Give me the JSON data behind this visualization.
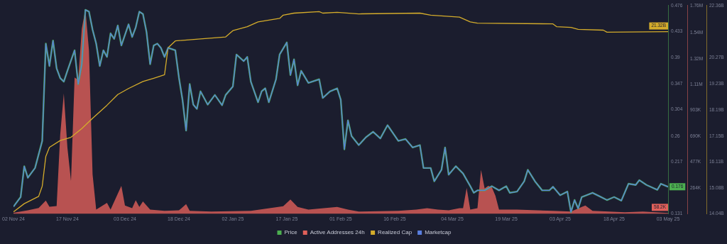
{
  "chart_data": {
    "type": "line",
    "xlim": [
      "2024-11-02",
      "2025-05-03"
    ],
    "xticks": [
      {
        "value": "2024-11-02",
        "label": "02 Nov 24"
      },
      {
        "value": "2024-11-17",
        "label": "17 Nov 24"
      },
      {
        "value": "2024-12-03",
        "label": "03 Dec 24"
      },
      {
        "value": "2024-12-18",
        "label": "18 Dec 24"
      },
      {
        "value": "2025-01-02",
        "label": "02 Jan 25"
      },
      {
        "value": "2025-01-17",
        "label": "17 Jan 25"
      },
      {
        "value": "2025-02-01",
        "label": "01 Feb 25"
      },
      {
        "value": "2025-02-16",
        "label": "16 Feb 25"
      },
      {
        "value": "2025-03-04",
        "label": "04 Mar 25"
      },
      {
        "value": "2025-03-19",
        "label": "19 Mar 25"
      },
      {
        "value": "2025-04-03",
        "label": "03 Apr 25"
      },
      {
        "value": "2025-04-18",
        "label": "18 Apr 25"
      },
      {
        "value": "2025-05-03",
        "label": "03 May 25"
      }
    ],
    "ylim": [
      0.131,
      0.476
    ],
    "yticks": [
      0.131,
      0.217,
      0.26,
      0.304,
      0.347,
      0.39,
      0.433,
      0.476
    ],
    "y2lim": [
      51000,
      1760000
    ],
    "y2ticks": [
      {
        "value": 264000,
        "label": "264K"
      },
      {
        "value": 477000,
        "label": "477K"
      },
      {
        "value": 690000,
        "label": "690K"
      },
      {
        "value": 903000,
        "label": "903K"
      },
      {
        "value": 1110000,
        "label": "1.11M"
      },
      {
        "value": 1320000,
        "label": "1.32M"
      },
      {
        "value": 1540000,
        "label": "1.54M"
      },
      {
        "value": 1760000,
        "label": "1.76M"
      }
    ],
    "y3lim": [
      14.04,
      22.36
    ],
    "y3ticks": [
      {
        "value": 14.04,
        "label": "14.04B"
      },
      {
        "value": 15.08,
        "label": "15.08B"
      },
      {
        "value": 16.11,
        "label": "16.11B"
      },
      {
        "value": 17.15,
        "label": "17.15B"
      },
      {
        "value": 18.19,
        "label": "18.19B"
      },
      {
        "value": 19.23,
        "label": "19.23B"
      },
      {
        "value": 20.27,
        "label": "20.27B"
      },
      {
        "value": 22.36,
        "label": "22.36B"
      }
    ],
    "legend": "bottom",
    "grid": false,
    "marker": "none",
    "series": [
      {
        "name": "Price",
        "color": "#4caf50",
        "x": [
          "2024-11-02",
          "2024-11-04",
          "2024-11-05",
          "2024-11-06",
          "2024-11-08",
          "2024-11-10",
          "2024-11-11",
          "2024-11-12",
          "2024-11-13",
          "2024-11-14",
          "2024-11-15",
          "2024-11-16",
          "2024-11-17",
          "2024-11-19",
          "2024-11-20",
          "2024-11-21",
          "2024-11-22",
          "2024-11-23",
          "2024-11-24",
          "2024-11-25",
          "2024-11-26",
          "2024-11-27",
          "2024-11-28",
          "2024-11-29",
          "2024-11-30",
          "2024-12-01",
          "2024-12-02",
          "2024-12-04",
          "2024-12-05",
          "2024-12-06",
          "2024-12-07",
          "2024-12-08",
          "2024-12-09",
          "2024-12-10",
          "2024-12-11",
          "2024-12-12",
          "2024-12-13",
          "2024-12-14",
          "2024-12-15",
          "2024-12-17",
          "2024-12-18",
          "2024-12-19",
          "2024-12-20",
          "2024-12-21",
          "2024-12-22",
          "2024-12-23",
          "2024-12-24",
          "2024-12-26",
          "2024-12-28",
          "2024-12-30",
          "2024-12-31",
          "2025-01-02",
          "2025-01-03",
          "2025-01-05",
          "2025-01-06",
          "2025-01-07",
          "2025-01-09",
          "2025-01-10",
          "2025-01-11",
          "2025-01-12",
          "2025-01-14",
          "2025-01-15",
          "2025-01-17",
          "2025-01-18",
          "2025-01-19",
          "2025-01-20",
          "2025-01-21",
          "2025-01-23",
          "2025-01-26",
          "2025-01-27",
          "2025-01-29",
          "2025-01-31",
          "2025-02-01",
          "2025-02-02",
          "2025-02-03",
          "2025-02-04",
          "2025-02-06",
          "2025-02-08",
          "2025-02-10",
          "2025-02-12",
          "2025-02-14",
          "2025-02-17",
          "2025-02-19",
          "2025-02-21",
          "2025-02-23",
          "2025-02-24",
          "2025-02-26",
          "2025-02-27",
          "2025-03-01",
          "2025-03-02",
          "2025-03-03",
          "2025-03-05",
          "2025-03-07",
          "2025-03-09",
          "2025-03-10",
          "2025-03-11",
          "2025-03-13",
          "2025-03-15",
          "2025-03-17",
          "2025-03-19",
          "2025-03-20",
          "2025-03-22",
          "2025-03-24",
          "2025-03-25",
          "2025-03-27",
          "2025-03-29",
          "2025-03-31",
          "2025-04-01",
          "2025-04-03",
          "2025-04-05",
          "2025-04-06",
          "2025-04-07",
          "2025-04-08",
          "2025-04-09",
          "2025-04-12",
          "2025-04-14",
          "2025-04-16",
          "2025-04-18",
          "2025-04-20",
          "2025-04-22",
          "2025-04-24",
          "2025-04-25",
          "2025-04-27",
          "2025-04-30",
          "2025-05-01",
          "2025-05-03"
        ],
        "values": [
          0.143,
          0.159,
          0.21,
          0.191,
          0.207,
          0.252,
          0.413,
          0.376,
          0.418,
          0.372,
          0.356,
          0.35,
          0.368,
          0.402,
          0.346,
          0.379,
          0.469,
          0.466,
          0.436,
          0.413,
          0.376,
          0.402,
          0.391,
          0.43,
          0.421,
          0.443,
          0.41,
          0.445,
          0.424,
          0.44,
          0.466,
          0.462,
          0.432,
          0.379,
          0.41,
          0.413,
          0.406,
          0.391,
          0.406,
          0.402,
          0.357,
          0.32,
          0.269,
          0.346,
          0.312,
          0.305,
          0.334,
          0.312,
          0.328,
          0.311,
          0.328,
          0.342,
          0.395,
          0.384,
          0.391,
          0.35,
          0.316,
          0.334,
          0.339,
          0.316,
          0.354,
          0.395,
          0.415,
          0.361,
          0.387,
          0.344,
          0.368,
          0.348,
          0.354,
          0.323,
          0.334,
          0.339,
          0.32,
          0.238,
          0.286,
          0.26,
          0.245,
          0.258,
          0.267,
          0.256,
          0.278,
          0.252,
          0.255,
          0.241,
          0.245,
          0.207,
          0.207,
          0.185,
          0.204,
          0.241,
          0.196,
          0.21,
          0.198,
          0.177,
          0.166,
          0.17,
          0.17,
          0.177,
          0.17,
          0.177,
          0.166,
          0.168,
          0.185,
          0.204,
          0.185,
          0.17,
          0.17,
          0.176,
          0.162,
          0.168,
          0.134,
          0.154,
          0.14,
          0.159,
          0.166,
          0.16,
          0.154,
          0.159,
          0.153,
          0.181,
          0.179,
          0.187,
          0.179,
          0.171,
          0.181,
          0.176
        ],
        "value_labels": [
          null,
          null,
          null,
          null,
          null,
          null,
          null,
          null,
          null,
          null,
          null,
          null,
          null,
          null,
          null,
          null,
          null,
          null,
          null,
          null,
          null,
          null,
          null,
          null,
          null,
          null,
          null,
          null,
          null,
          null,
          null,
          null,
          null,
          null,
          null,
          null,
          null,
          null,
          null,
          null,
          null,
          null,
          null,
          null,
          null,
          null,
          null,
          null,
          null,
          null,
          null,
          null,
          null,
          null,
          null,
          null,
          null,
          null,
          null,
          null,
          null,
          null,
          null,
          null,
          null,
          null,
          null,
          null,
          null,
          null,
          null,
          null,
          null,
          null,
          null,
          null,
          null,
          null,
          null,
          null,
          null,
          null,
          null,
          null,
          null,
          null,
          null,
          null,
          null,
          null,
          null,
          null,
          null,
          null,
          null,
          null,
          null,
          null,
          null,
          null,
          null,
          null,
          null,
          null,
          null,
          null,
          null,
          null,
          null,
          null,
          null,
          null,
          null,
          null,
          null,
          null,
          null,
          null,
          null,
          null,
          null,
          null,
          null,
          null,
          null,
          "0.176"
        ]
      },
      {
        "name": "Active Addresses 24h",
        "type": "area",
        "axis": "y2",
        "color": "#e0605a",
        "x": [
          "2024-11-02",
          "2024-11-06",
          "2024-11-09",
          "2024-11-11",
          "2024-11-12",
          "2024-11-14",
          "2024-11-15",
          "2024-11-16",
          "2024-11-17",
          "2024-11-18",
          "2024-11-19",
          "2024-11-20",
          "2024-11-21",
          "2024-11-22",
          "2024-11-23",
          "2024-11-24",
          "2024-11-25",
          "2024-11-28",
          "2024-11-29",
          "2024-12-02",
          "2024-12-03",
          "2024-12-05",
          "2024-12-06",
          "2024-12-07",
          "2024-12-08",
          "2024-12-10",
          "2024-12-14",
          "2024-12-18",
          "2024-12-20",
          "2024-12-21",
          "2024-12-27",
          "2025-01-07",
          "2025-01-16",
          "2025-01-18",
          "2025-01-20",
          "2025-01-23",
          "2025-01-31",
          "2025-02-03",
          "2025-02-06",
          "2025-02-17",
          "2025-02-22",
          "2025-02-25",
          "2025-02-28",
          "2025-03-03",
          "2025-03-06",
          "2025-03-07",
          "2025-03-08",
          "2025-03-09",
          "2025-03-11",
          "2025-03-12",
          "2025-03-13",
          "2025-03-14",
          "2025-03-15",
          "2025-03-16",
          "2025-03-17",
          "2025-03-22",
          "2025-04-01",
          "2025-04-06",
          "2025-04-09",
          "2025-04-10",
          "2025-04-12",
          "2025-04-21",
          "2025-04-26",
          "2025-05-03"
        ],
        "values": [
          60000,
          80000,
          100000,
          160000,
          110000,
          115000,
          700000,
          1040000,
          596000,
          320000,
          1170000,
          1150000,
          1570000,
          1730000,
          1390000,
          375000,
          87000,
          142000,
          87000,
          281000,
          120000,
          98000,
          164000,
          109000,
          153000,
          87000,
          76000,
          80000,
          131000,
          76000,
          70000,
          76000,
          114000,
          170000,
          109000,
          87000,
          109000,
          87000,
          70000,
          76000,
          87000,
          98000,
          87000,
          80000,
          98000,
          98000,
          264000,
          87000,
          98000,
          413000,
          260000,
          281000,
          270000,
          200000,
          87000,
          87000,
          76000,
          70000,
          109000,
          120000,
          76000,
          65000,
          70000,
          58200
        ],
        "value_labels": [
          null,
          null,
          null,
          null,
          null,
          null,
          null,
          null,
          null,
          null,
          null,
          null,
          null,
          null,
          null,
          null,
          null,
          null,
          null,
          null,
          null,
          null,
          null,
          null,
          null,
          null,
          null,
          null,
          null,
          null,
          null,
          null,
          null,
          null,
          null,
          null,
          null,
          null,
          null,
          null,
          null,
          null,
          null,
          null,
          null,
          null,
          null,
          null,
          null,
          null,
          null,
          null,
          null,
          null,
          null,
          null,
          null,
          null,
          null,
          null,
          null,
          null,
          null,
          "58.2K"
        ]
      },
      {
        "name": "Realized Cap",
        "axis": "y3",
        "color": "#d4ac2b",
        "x": [
          "2024-11-02",
          "2024-11-05",
          "2024-11-09",
          "2024-11-10",
          "2024-11-11",
          "2024-11-12",
          "2024-11-15",
          "2024-11-18",
          "2024-11-21",
          "2024-11-24",
          "2024-11-28",
          "2024-12-01",
          "2024-12-04",
          "2024-12-08",
          "2024-12-11",
          "2024-12-14",
          "2024-12-15",
          "2024-12-17",
          "2024-12-24",
          "2024-12-31",
          "2025-01-02",
          "2025-01-06",
          "2025-01-09",
          "2025-01-15",
          "2025-01-16",
          "2025-01-19",
          "2025-01-26",
          "2025-01-27",
          "2025-01-31",
          "2025-02-06",
          "2025-02-23",
          "2025-02-26",
          "2025-03-06",
          "2025-03-09",
          "2025-03-11",
          "2025-04-01",
          "2025-04-02",
          "2025-04-06",
          "2025-04-08",
          "2025-04-15",
          "2025-04-16",
          "2025-05-03"
        ],
        "values": [
          14.12,
          14.45,
          14.74,
          15.15,
          16.34,
          16.7,
          16.97,
          17.1,
          17.45,
          17.86,
          18.38,
          18.81,
          19.05,
          19.33,
          19.46,
          19.6,
          20.68,
          20.95,
          21.03,
          21.11,
          21.36,
          21.52,
          21.71,
          21.85,
          21.98,
          22.06,
          22.12,
          22.06,
          22.09,
          22.03,
          22.06,
          21.98,
          21.9,
          21.71,
          21.66,
          21.63,
          21.52,
          21.49,
          21.41,
          21.38,
          21.3,
          21.32
        ],
        "value_labels": [
          null,
          null,
          null,
          null,
          null,
          null,
          null,
          null,
          null,
          null,
          null,
          null,
          null,
          null,
          null,
          null,
          null,
          null,
          null,
          null,
          null,
          null,
          null,
          null,
          null,
          null,
          null,
          null,
          null,
          null,
          null,
          null,
          null,
          null,
          null,
          null,
          null,
          null,
          null,
          null,
          null,
          "21.32B"
        ]
      },
      {
        "name": "Marketcap",
        "color": "#5a7fe0",
        "x": [
          "2024-11-02",
          "2024-11-04",
          "2024-11-05",
          "2024-11-06",
          "2024-11-08",
          "2024-11-10",
          "2024-11-11",
          "2024-11-12",
          "2024-11-13",
          "2024-11-14",
          "2024-11-15",
          "2024-11-16",
          "2024-11-17",
          "2024-11-19",
          "2024-11-20",
          "2024-11-21",
          "2024-11-22",
          "2024-11-23",
          "2024-11-24",
          "2024-11-25",
          "2024-11-26",
          "2024-11-27",
          "2024-11-28",
          "2024-11-29",
          "2024-11-30",
          "2024-12-01",
          "2024-12-02",
          "2024-12-04",
          "2024-12-05",
          "2024-12-06",
          "2024-12-07",
          "2024-12-08",
          "2024-12-09",
          "2024-12-10",
          "2024-12-11",
          "2024-12-12",
          "2024-12-13",
          "2024-12-14",
          "2024-12-15",
          "2024-12-17",
          "2024-12-18",
          "2024-12-19",
          "2024-12-20",
          "2024-12-21",
          "2024-12-22",
          "2024-12-23",
          "2024-12-24",
          "2024-12-26",
          "2024-12-28",
          "2024-12-30",
          "2024-12-31",
          "2025-01-02",
          "2025-01-03",
          "2025-01-05",
          "2025-01-06",
          "2025-01-07",
          "2025-01-09",
          "2025-01-10",
          "2025-01-11",
          "2025-01-12",
          "2025-01-14",
          "2025-01-15",
          "2025-01-17",
          "2025-01-18",
          "2025-01-19",
          "2025-01-20",
          "2025-01-21",
          "2025-01-23",
          "2025-01-26",
          "2025-01-27",
          "2025-01-29",
          "2025-01-31",
          "2025-02-01",
          "2025-02-02",
          "2025-02-03",
          "2025-02-04",
          "2025-02-06",
          "2025-02-08",
          "2025-02-10",
          "2025-02-12",
          "2025-02-14",
          "2025-02-17",
          "2025-02-19",
          "2025-02-21",
          "2025-02-23",
          "2025-02-24",
          "2025-02-26",
          "2025-02-27",
          "2025-03-01",
          "2025-03-02",
          "2025-03-03",
          "2025-03-05",
          "2025-03-07",
          "2025-03-09",
          "2025-03-10",
          "2025-03-11",
          "2025-03-13",
          "2025-03-15",
          "2025-03-17",
          "2025-03-19",
          "2025-03-20",
          "2025-03-22",
          "2025-03-24",
          "2025-03-25",
          "2025-03-27",
          "2025-03-29",
          "2025-03-31",
          "2025-04-01",
          "2025-04-03",
          "2025-04-05",
          "2025-04-06",
          "2025-04-07",
          "2025-04-08",
          "2025-04-09",
          "2025-04-12",
          "2025-04-14",
          "2025-04-16",
          "2025-04-18",
          "2025-04-20",
          "2025-04-22",
          "2025-04-24",
          "2025-04-25",
          "2025-04-27",
          "2025-04-30",
          "2025-05-01",
          "2025-05-03"
        ],
        "values": [
          0.143,
          0.159,
          0.21,
          0.191,
          0.207,
          0.252,
          0.413,
          0.376,
          0.418,
          0.372,
          0.356,
          0.35,
          0.368,
          0.402,
          0.346,
          0.379,
          0.469,
          0.466,
          0.436,
          0.413,
          0.376,
          0.402,
          0.391,
          0.43,
          0.421,
          0.443,
          0.41,
          0.445,
          0.424,
          0.44,
          0.466,
          0.462,
          0.432,
          0.379,
          0.41,
          0.413,
          0.406,
          0.391,
          0.406,
          0.402,
          0.357,
          0.32,
          0.269,
          0.346,
          0.312,
          0.305,
          0.334,
          0.312,
          0.328,
          0.311,
          0.328,
          0.342,
          0.395,
          0.384,
          0.391,
          0.35,
          0.316,
          0.334,
          0.339,
          0.316,
          0.354,
          0.395,
          0.415,
          0.361,
          0.387,
          0.344,
          0.368,
          0.348,
          0.354,
          0.323,
          0.334,
          0.339,
          0.32,
          0.238,
          0.286,
          0.26,
          0.245,
          0.258,
          0.267,
          0.256,
          0.278,
          0.252,
          0.255,
          0.241,
          0.245,
          0.207,
          0.207,
          0.185,
          0.204,
          0.241,
          0.196,
          0.21,
          0.198,
          0.177,
          0.166,
          0.17,
          0.17,
          0.177,
          0.17,
          0.177,
          0.166,
          0.168,
          0.185,
          0.204,
          0.185,
          0.17,
          0.17,
          0.176,
          0.162,
          0.168,
          0.134,
          0.154,
          0.14,
          0.159,
          0.166,
          0.16,
          0.154,
          0.159,
          0.153,
          0.181,
          0.179,
          0.187,
          0.179,
          0.171,
          0.181,
          0.176
        ]
      }
    ]
  }
}
